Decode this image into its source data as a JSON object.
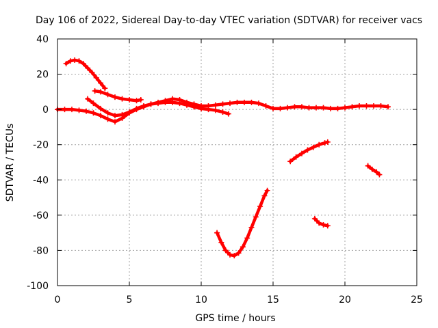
{
  "chart_data": {
    "type": "scatter",
    "title": "Day 106 of 2022, Sidereal Day-to-day VTEC variation (SDTVAR) for receiver vacs",
    "xlabel": "GPS time / hours",
    "ylabel": "SDTVAR / TECUs",
    "xlim": [
      0,
      25
    ],
    "ylim": [
      -100,
      40
    ],
    "xticks": [
      0,
      5,
      10,
      15,
      20,
      25
    ],
    "yticks": [
      -100,
      -80,
      -60,
      -40,
      -20,
      0,
      20,
      40
    ],
    "xtick_labels": [
      "0",
      "5",
      "10",
      "15",
      "20",
      "25"
    ],
    "ytick_labels": [
      "-100",
      "-80",
      "-60",
      "-40",
      "-20",
      "0",
      "20",
      "40"
    ],
    "grid": true,
    "marker": "plus",
    "color": "#ff0000",
    "series": [
      {
        "name": "arc-1",
        "x": [
          0.6,
          0.9,
          1.2,
          1.5,
          1.8,
          2.1,
          2.4,
          2.7,
          3.0,
          3.3
        ],
        "y": [
          26,
          27.5,
          28,
          27.5,
          26,
          23.5,
          21,
          18,
          15,
          12
        ]
      },
      {
        "name": "arc-2",
        "x": [
          0.0,
          0.5,
          1.0,
          1.5,
          2.0,
          2.5,
          3.0,
          3.5,
          4.0,
          4.5,
          5.0,
          5.5,
          6.0,
          6.5,
          7.0,
          7.5,
          8.0,
          8.5,
          9.0,
          9.5,
          10.0,
          10.5,
          11.0,
          11.5,
          12.0,
          12.5,
          13.0,
          13.5,
          14.0,
          14.5,
          15.0,
          15.5,
          16.0,
          16.5,
          17.0,
          17.5,
          18.0,
          18.5,
          19.0,
          19.5,
          20.0,
          20.5,
          21.0,
          21.5,
          22.0,
          22.5,
          23.0
        ],
        "y": [
          0,
          0,
          0,
          -0.5,
          -1,
          -2,
          -3.5,
          -5.5,
          -7,
          -5,
          -2,
          0,
          1.5,
          3,
          4,
          5,
          6,
          5.5,
          4,
          3,
          2,
          2,
          2.5,
          3,
          3.5,
          4,
          4,
          4,
          3.5,
          2,
          0.5,
          0.5,
          1,
          1.5,
          1.5,
          1,
          1,
          1,
          0.5,
          0.5,
          1,
          1.5,
          2,
          2,
          2,
          2,
          1.5
        ]
      },
      {
        "name": "arc-3",
        "x": [
          2.6,
          3.0,
          3.5,
          4.0,
          4.5,
          5.0,
          5.5,
          5.8
        ],
        "y": [
          10.5,
          10,
          8.5,
          7,
          6,
          5.5,
          5,
          5.5
        ]
      },
      {
        "name": "arc-4",
        "x": [
          2.1,
          2.5,
          3.0,
          3.5,
          4.0,
          4.5,
          5.0,
          5.5,
          6.0,
          6.5,
          7.0,
          7.5,
          8.0,
          8.5,
          9.0,
          9.5,
          10.0
        ],
        "y": [
          6,
          3.5,
          0.5,
          -2,
          -3.5,
          -3,
          -1.5,
          0.5,
          2,
          3,
          3.5,
          4,
          4,
          3.5,
          2.5,
          1.5,
          0.5
        ]
      },
      {
        "name": "arc-5",
        "x": [
          9.0,
          9.5,
          10.0,
          10.5,
          11.0,
          11.5,
          11.9
        ],
        "y": [
          3,
          1.5,
          0.5,
          0,
          -0.5,
          -1.5,
          -2.5
        ]
      },
      {
        "name": "arc-6",
        "x": [
          11.1,
          11.4,
          11.7,
          12.0,
          12.3,
          12.6,
          12.9,
          13.2,
          13.5,
          13.8,
          14.1,
          14.4,
          14.6
        ],
        "y": [
          -70,
          -75.5,
          -80,
          -82.5,
          -83,
          -81.5,
          -78,
          -73,
          -67,
          -61,
          -55,
          -49,
          -46
        ]
      },
      {
        "name": "arc-7",
        "x": [
          16.2,
          16.6,
          17.0,
          17.4,
          17.8,
          18.2,
          18.6,
          18.8
        ],
        "y": [
          -29.5,
          -27,
          -25,
          -23,
          -21.5,
          -20,
          -19,
          -18.5
        ]
      },
      {
        "name": "arc-8",
        "x": [
          17.9,
          18.2,
          18.5,
          18.8
        ],
        "y": [
          -62,
          -64.5,
          -65.5,
          -66
        ]
      },
      {
        "name": "arc-9",
        "x": [
          21.6,
          21.9,
          22.2,
          22.4
        ],
        "y": [
          -32,
          -34,
          -35.5,
          -37
        ]
      }
    ]
  }
}
